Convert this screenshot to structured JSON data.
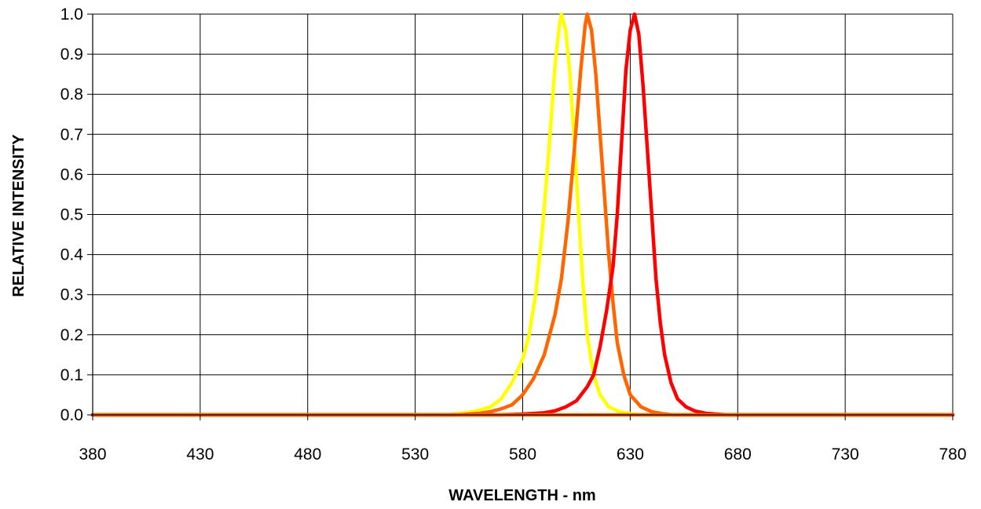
{
  "chart_data": {
    "type": "line",
    "title": "",
    "xlabel": "WAVELENGTH - nm",
    "ylabel": "RELATIVE INTENSITY",
    "xlim": [
      380,
      780
    ],
    "ylim": [
      0,
      1.0
    ],
    "x_ticks": [
      380,
      430,
      480,
      530,
      580,
      630,
      680,
      730,
      780
    ],
    "y_ticks": [
      0.0,
      0.1,
      0.2,
      0.3,
      0.4,
      0.5,
      0.6,
      0.7,
      0.8,
      0.9,
      1.0
    ],
    "grid": true,
    "legend": "none",
    "series": [
      {
        "color": "#ffff00",
        "points": [
          [
            380,
            0
          ],
          [
            545,
            0
          ],
          [
            550,
            0.003
          ],
          [
            555,
            0.006
          ],
          [
            560,
            0.012
          ],
          [
            565,
            0.02
          ],
          [
            570,
            0.04
          ],
          [
            575,
            0.08
          ],
          [
            580,
            0.14
          ],
          [
            583,
            0.2
          ],
          [
            586,
            0.3
          ],
          [
            589,
            0.45
          ],
          [
            592,
            0.65
          ],
          [
            595,
            0.87
          ],
          [
            597,
            0.97
          ],
          [
            598,
            1.0
          ],
          [
            600,
            0.96
          ],
          [
            602,
            0.85
          ],
          [
            604,
            0.68
          ],
          [
            606,
            0.5
          ],
          [
            608,
            0.33
          ],
          [
            610,
            0.2
          ],
          [
            613,
            0.1
          ],
          [
            616,
            0.05
          ],
          [
            620,
            0.02
          ],
          [
            625,
            0.008
          ],
          [
            630,
            0.003
          ],
          [
            635,
            0
          ],
          [
            780,
            0
          ]
        ]
      },
      {
        "color": "#ff6600",
        "points": [
          [
            380,
            0
          ],
          [
            550,
            0
          ],
          [
            560,
            0.004
          ],
          [
            565,
            0.008
          ],
          [
            570,
            0.015
          ],
          [
            575,
            0.025
          ],
          [
            580,
            0.05
          ],
          [
            585,
            0.09
          ],
          [
            590,
            0.15
          ],
          [
            595,
            0.25
          ],
          [
            598,
            0.34
          ],
          [
            601,
            0.48
          ],
          [
            604,
            0.66
          ],
          [
            607,
            0.86
          ],
          [
            609,
            0.97
          ],
          [
            610,
            1.0
          ],
          [
            612,
            0.96
          ],
          [
            614,
            0.85
          ],
          [
            616,
            0.7
          ],
          [
            618,
            0.55
          ],
          [
            620,
            0.4
          ],
          [
            622,
            0.28
          ],
          [
            624,
            0.18
          ],
          [
            627,
            0.1
          ],
          [
            630,
            0.05
          ],
          [
            635,
            0.02
          ],
          [
            640,
            0.008
          ],
          [
            645,
            0.003
          ],
          [
            650,
            0
          ],
          [
            780,
            0
          ]
        ]
      },
      {
        "color": "#ff0000",
        "points": [
          [
            380,
            0
          ],
          [
            570,
            0
          ],
          [
            580,
            0.002
          ],
          [
            590,
            0.005
          ],
          [
            595,
            0.01
          ],
          [
            600,
            0.02
          ],
          [
            605,
            0.035
          ],
          [
            610,
            0.07
          ],
          [
            613,
            0.1
          ],
          [
            616,
            0.17
          ],
          [
            619,
            0.26
          ],
          [
            622,
            0.37
          ],
          [
            624,
            0.5
          ],
          [
            626,
            0.68
          ],
          [
            628,
            0.86
          ],
          [
            630,
            0.96
          ],
          [
            632,
            1.0
          ],
          [
            634,
            0.95
          ],
          [
            636,
            0.82
          ],
          [
            638,
            0.66
          ],
          [
            640,
            0.5
          ],
          [
            642,
            0.34
          ],
          [
            644,
            0.23
          ],
          [
            646,
            0.15
          ],
          [
            649,
            0.08
          ],
          [
            652,
            0.04
          ],
          [
            656,
            0.02
          ],
          [
            660,
            0.01
          ],
          [
            665,
            0.004
          ],
          [
            670,
            0.002
          ],
          [
            675,
            0
          ],
          [
            780,
            0
          ]
        ]
      }
    ]
  }
}
